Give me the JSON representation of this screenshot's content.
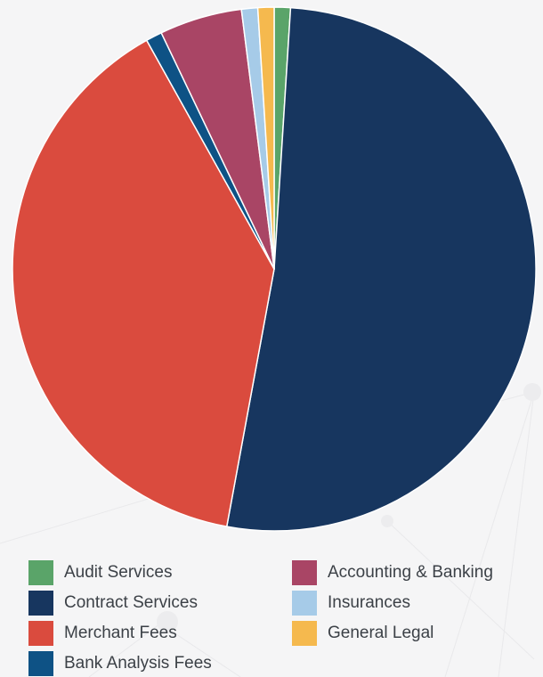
{
  "chart_data": {
    "type": "pie",
    "title": "",
    "start_angle_deg": 0,
    "direction": "clockwise",
    "slices": [
      {
        "label": "Audit Services",
        "value": 1.0,
        "color": "#5aa469"
      },
      {
        "label": "Contract Services",
        "value": 51.9,
        "color": "#17365f"
      },
      {
        "label": "Merchant Fees",
        "value": 39.0,
        "color": "#da4b3e"
      },
      {
        "label": "Bank Analysis Fees",
        "value": 1.0,
        "color": "#0e5285"
      },
      {
        "label": "Accounting & Banking",
        "value": 5.1,
        "color": "#a94565"
      },
      {
        "label": "Insurances",
        "value": 1.0,
        "color": "#a6cbe8"
      },
      {
        "label": "General Legal",
        "value": 1.0,
        "color": "#f5b94e"
      }
    ],
    "legend_position": "bottom",
    "legend_order": [
      "Audit Services",
      "Accounting & Banking",
      "Contract Services",
      "Insurances",
      "Merchant Fees",
      "General Legal",
      "Bank Analysis Fees"
    ]
  }
}
